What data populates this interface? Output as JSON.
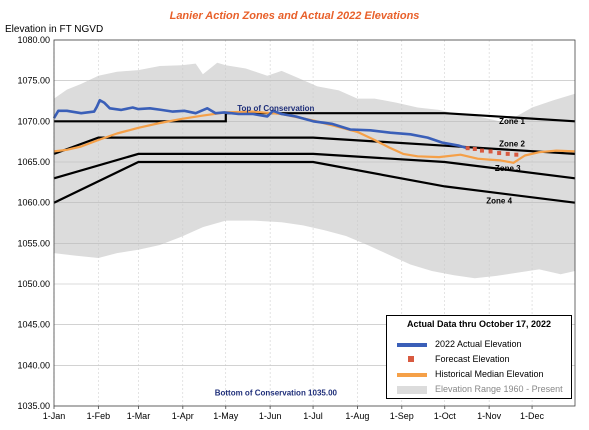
{
  "chart_data": {
    "type": "line",
    "title": "Lanier Action Zones and Actual 2022 Elevations",
    "ylabel": "Elevation in FT NGVD",
    "xlabel": "",
    "ylim": [
      1035,
      1080
    ],
    "y_ticks": [
      "1035.00",
      "1040.00",
      "1045.00",
      "1050.00",
      "1055.00",
      "1060.00",
      "1065.00",
      "1070.00",
      "1075.00",
      "1080.00"
    ],
    "x_ticks": [
      "1-Jan",
      "1-Feb",
      "1-Mar",
      "1-Apr",
      "1-May",
      "1-Jun",
      "1-Jul",
      "1-Aug",
      "1-Sep",
      "1-Oct",
      "1-Nov",
      "1-Dec"
    ],
    "x_tick_days": [
      1,
      32,
      60,
      91,
      121,
      152,
      182,
      213,
      244,
      274,
      305,
      335
    ],
    "x_max_day": 365,
    "grid": true,
    "legend_position": "bottom-right",
    "legend_title": "Actual Data thru October 17, 2022",
    "annotations": [
      {
        "text": "Top of Conservation",
        "day": 156,
        "y": 1071.3
      },
      {
        "text": "Zone 1",
        "day": 312,
        "y": 1069.7
      },
      {
        "text": "Zone 2",
        "day": 312,
        "y": 1066.9
      },
      {
        "text": "Zone 3",
        "day": 309,
        "y": 1063.9
      },
      {
        "text": "Zone 4",
        "day": 303,
        "y": 1059.9
      },
      {
        "text": "Bottom of Conservation 1035.00",
        "day": 156,
        "y": 1036.3
      }
    ],
    "series": [
      {
        "name": "2022 Actual Elevation",
        "color": "#3a5fb8",
        "points": [
          [
            1,
            1070.4
          ],
          [
            4,
            1071.3
          ],
          [
            10,
            1071.3
          ],
          [
            20,
            1071.0
          ],
          [
            29,
            1071.2
          ],
          [
            31,
            1071.8
          ],
          [
            33,
            1072.6
          ],
          [
            36,
            1072.3
          ],
          [
            40,
            1071.6
          ],
          [
            48,
            1071.4
          ],
          [
            56,
            1071.7
          ],
          [
            60,
            1071.5
          ],
          [
            68,
            1071.6
          ],
          [
            76,
            1071.4
          ],
          [
            84,
            1071.2
          ],
          [
            92,
            1071.3
          ],
          [
            100,
            1071.0
          ],
          [
            108,
            1071.6
          ],
          [
            114,
            1071.0
          ],
          [
            120,
            1071.1
          ],
          [
            130,
            1070.9
          ],
          [
            140,
            1070.9
          ],
          [
            150,
            1070.6
          ],
          [
            154,
            1071.3
          ],
          [
            160,
            1070.9
          ],
          [
            170,
            1070.6
          ],
          [
            182,
            1070.0
          ],
          [
            195,
            1069.7
          ],
          [
            208,
            1069.0
          ],
          [
            222,
            1068.9
          ],
          [
            236,
            1068.6
          ],
          [
            250,
            1068.4
          ],
          [
            262,
            1068.0
          ],
          [
            272,
            1067.4
          ],
          [
            284,
            1067.0
          ],
          [
            290,
            1066.7
          ]
        ]
      },
      {
        "name": "Forecast Elevation",
        "color": "#d85a40",
        "points": [
          [
            290,
            1066.7
          ],
          [
            295,
            1066.6
          ],
          [
            300,
            1066.4
          ],
          [
            306,
            1066.3
          ],
          [
            312,
            1066.1
          ],
          [
            318,
            1066.0
          ],
          [
            324,
            1065.9
          ]
        ]
      },
      {
        "name": "Historical Median Elevation",
        "color": "#f5a048",
        "points": [
          [
            1,
            1066.3
          ],
          [
            10,
            1066.5
          ],
          [
            20,
            1066.9
          ],
          [
            32,
            1067.7
          ],
          [
            45,
            1068.5
          ],
          [
            60,
            1069.2
          ],
          [
            75,
            1069.8
          ],
          [
            90,
            1070.3
          ],
          [
            105,
            1070.7
          ],
          [
            121,
            1071.1
          ],
          [
            140,
            1071.2
          ],
          [
            160,
            1070.9
          ],
          [
            182,
            1070.1
          ],
          [
            200,
            1069.3
          ],
          [
            213,
            1068.7
          ],
          [
            225,
            1067.7
          ],
          [
            235,
            1066.8
          ],
          [
            245,
            1066.0
          ],
          [
            255,
            1065.7
          ],
          [
            270,
            1065.6
          ],
          [
            285,
            1065.9
          ],
          [
            297,
            1065.4
          ],
          [
            305,
            1065.3
          ],
          [
            313,
            1065.2
          ],
          [
            322,
            1064.9
          ],
          [
            330,
            1065.8
          ],
          [
            340,
            1066.2
          ],
          [
            352,
            1066.4
          ],
          [
            365,
            1066.3
          ]
        ]
      },
      {
        "name": "Elevation Range 1960 - Present",
        "color": "#dcdcdc",
        "upper": [
          [
            1,
            1072.8
          ],
          [
            10,
            1073.9
          ],
          [
            20,
            1074.6
          ],
          [
            32,
            1075.6
          ],
          [
            45,
            1076.1
          ],
          [
            60,
            1076.3
          ],
          [
            75,
            1076.8
          ],
          [
            90,
            1076.9
          ],
          [
            100,
            1077.1
          ],
          [
            105,
            1075.8
          ],
          [
            115,
            1077.2
          ],
          [
            121,
            1076.9
          ],
          [
            135,
            1076.5
          ],
          [
            150,
            1075.6
          ],
          [
            160,
            1076.2
          ],
          [
            172,
            1075.3
          ],
          [
            185,
            1074.3
          ],
          [
            200,
            1073.8
          ],
          [
            213,
            1072.8
          ],
          [
            225,
            1072.8
          ],
          [
            240,
            1072.3
          ],
          [
            255,
            1071.7
          ],
          [
            270,
            1071.4
          ],
          [
            282,
            1070.9
          ],
          [
            295,
            1070.7
          ],
          [
            305,
            1070.3
          ],
          [
            315,
            1069.9
          ],
          [
            325,
            1070.7
          ],
          [
            335,
            1071.7
          ],
          [
            350,
            1072.6
          ],
          [
            365,
            1073.4
          ]
        ],
        "lower": [
          [
            1,
            1053.8
          ],
          [
            15,
            1053.5
          ],
          [
            32,
            1053.2
          ],
          [
            45,
            1053.8
          ],
          [
            60,
            1054.2
          ],
          [
            75,
            1054.8
          ],
          [
            90,
            1055.8
          ],
          [
            105,
            1057.0
          ],
          [
            121,
            1057.8
          ],
          [
            140,
            1057.8
          ],
          [
            160,
            1057.6
          ],
          [
            175,
            1057.2
          ],
          [
            190,
            1056.6
          ],
          [
            205,
            1055.9
          ],
          [
            220,
            1054.8
          ],
          [
            235,
            1053.6
          ],
          [
            250,
            1052.4
          ],
          [
            265,
            1051.6
          ],
          [
            280,
            1051.1
          ],
          [
            295,
            1050.7
          ],
          [
            310,
            1051.0
          ],
          [
            325,
            1051.4
          ],
          [
            340,
            1051.8
          ],
          [
            355,
            1051.2
          ],
          [
            365,
            1051.6
          ]
        ]
      }
    ],
    "zones": [
      {
        "name": "Top of Conservation",
        "points": [
          [
            1,
            1070.0
          ],
          [
            121,
            1070.0
          ],
          [
            121,
            1071.0
          ],
          [
            182,
            1071.0
          ],
          [
            274,
            1071.0
          ],
          [
            365,
            1070.0
          ]
        ]
      },
      {
        "name": "Zone 1",
        "points": [
          [
            1,
            1066.0
          ],
          [
            32,
            1068.0
          ],
          [
            182,
            1068.0
          ],
          [
            274,
            1067.0
          ],
          [
            365,
            1066.0
          ]
        ]
      },
      {
        "name": "Zone 2",
        "points": [
          [
            1,
            1063.0
          ],
          [
            60,
            1066.0
          ],
          [
            182,
            1066.0
          ],
          [
            274,
            1065.0
          ],
          [
            365,
            1063.0
          ]
        ]
      },
      {
        "name": "Zone 3",
        "points": [
          [
            1,
            1060.0
          ],
          [
            60,
            1065.0
          ],
          [
            182,
            1065.0
          ],
          [
            274,
            1062.0
          ],
          [
            365,
            1060.0
          ]
        ]
      }
    ]
  }
}
